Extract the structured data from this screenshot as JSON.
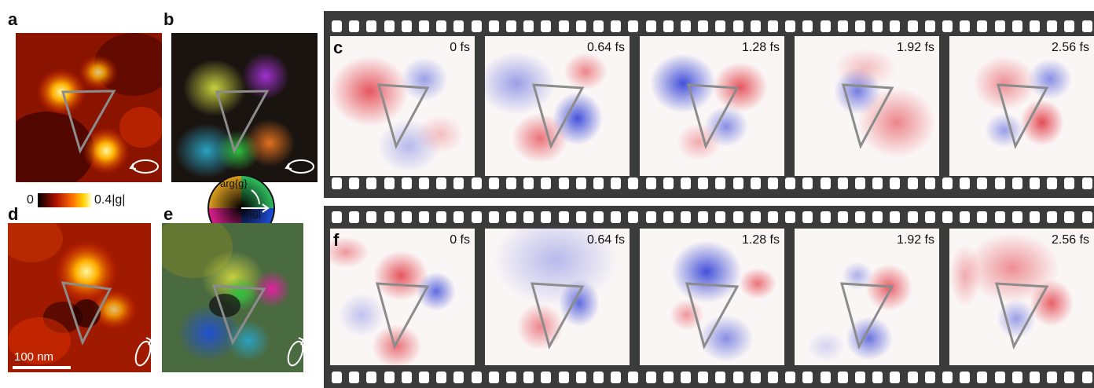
{
  "panel_labels": {
    "a": "a",
    "b": "b",
    "c": "c",
    "d": "d",
    "e": "e",
    "f": "f"
  },
  "colorbar": {
    "min_label": "0",
    "max_label_num": "0.4",
    "max_label_var": "|g|"
  },
  "color_wheel": {
    "arg_label": "arg{g}",
    "abs_label": "|g|"
  },
  "scale_bar": {
    "label": "100 nm"
  },
  "film_c": {
    "times": [
      "0 fs",
      "0.64 fs",
      "1.28 fs",
      "1.92 fs",
      "2.56 fs"
    ]
  },
  "film_f": {
    "times": [
      "0 fs",
      "0.64 fs",
      "1.28 fs",
      "1.92 fs",
      "2.56 fs"
    ]
  },
  "colors": {
    "film": "#3b3b3b",
    "triangle": "#8c8c8c",
    "red": "#e0303a",
    "blue": "#2f3fd6"
  }
}
